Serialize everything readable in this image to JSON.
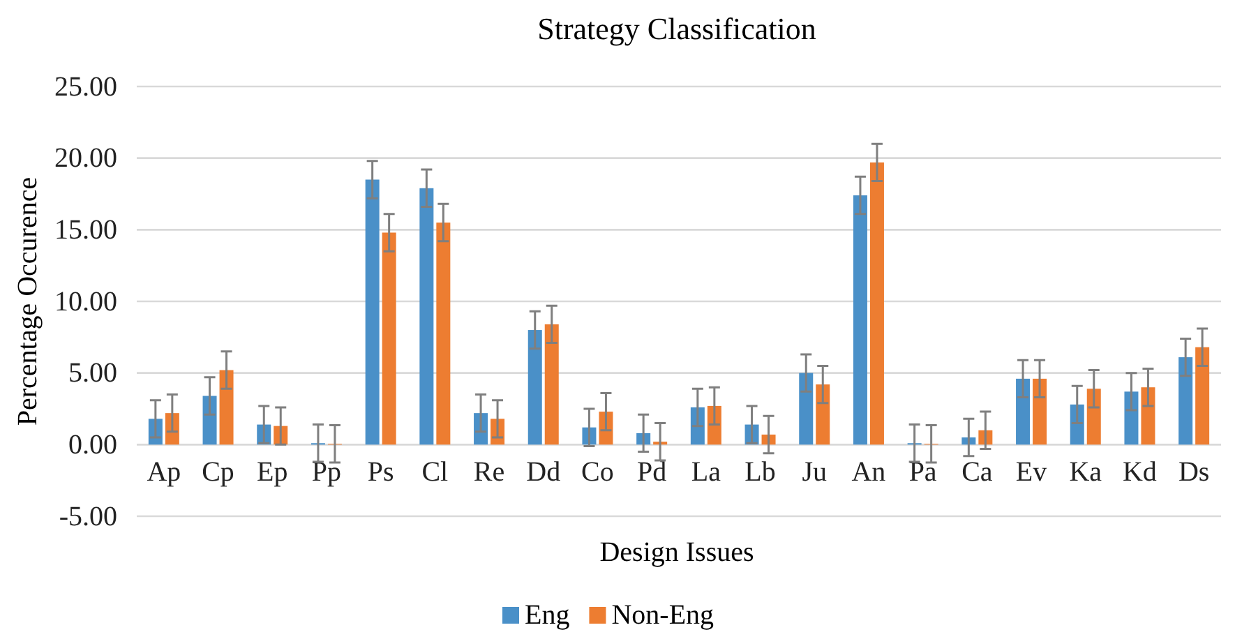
{
  "chart_data": {
    "type": "bar",
    "title": "Strategy Classification",
    "xlabel": "Design Issues",
    "ylabel": "Percentage Occurence",
    "categories": [
      "Ap",
      "Cp",
      "Ep",
      "Pp",
      "Ps",
      "Cl",
      "Re",
      "Dd",
      "Co",
      "Pd",
      "La",
      "Lb",
      "Ju",
      "An",
      "Pa",
      "Ca",
      "Ev",
      "Ka",
      "Kd",
      "Ds"
    ],
    "series": [
      {
        "name": "Eng",
        "color": "#4a90c8",
        "values": [
          1.8,
          3.4,
          1.4,
          0.1,
          18.5,
          17.9,
          2.2,
          8.0,
          1.2,
          0.8,
          2.6,
          1.4,
          5.0,
          17.4,
          0.1,
          0.5,
          4.6,
          2.8,
          3.7,
          6.1
        ],
        "errors": [
          1.3,
          1.3,
          1.3,
          1.3,
          1.3,
          1.3,
          1.3,
          1.3,
          1.3,
          1.3,
          1.3,
          1.3,
          1.3,
          1.3,
          1.3,
          1.3,
          1.3,
          1.3,
          1.3,
          1.3
        ]
      },
      {
        "name": "Non-Eng",
        "color": "#ed7d31",
        "values": [
          2.2,
          5.2,
          1.3,
          0.05,
          14.8,
          15.5,
          1.8,
          8.4,
          2.3,
          0.2,
          2.7,
          0.7,
          4.2,
          19.7,
          0.05,
          1.0,
          4.6,
          3.9,
          4.0,
          6.8
        ],
        "errors": [
          1.3,
          1.3,
          1.3,
          1.3,
          1.3,
          1.3,
          1.3,
          1.3,
          1.3,
          1.3,
          1.3,
          1.3,
          1.3,
          1.3,
          1.3,
          1.3,
          1.3,
          1.3,
          1.3,
          1.3
        ]
      }
    ],
    "ylim": [
      -5,
      25
    ],
    "yticks": [
      {
        "value": -5,
        "label": "-5.00"
      },
      {
        "value": 0,
        "label": "0.00"
      },
      {
        "value": 5,
        "label": "5.00"
      },
      {
        "value": 10,
        "label": "10.00"
      },
      {
        "value": 15,
        "label": "15.00"
      },
      {
        "value": 20,
        "label": "20.00"
      },
      {
        "value": 25,
        "label": "25.00"
      }
    ],
    "grid": "y",
    "legend": "bottom"
  }
}
